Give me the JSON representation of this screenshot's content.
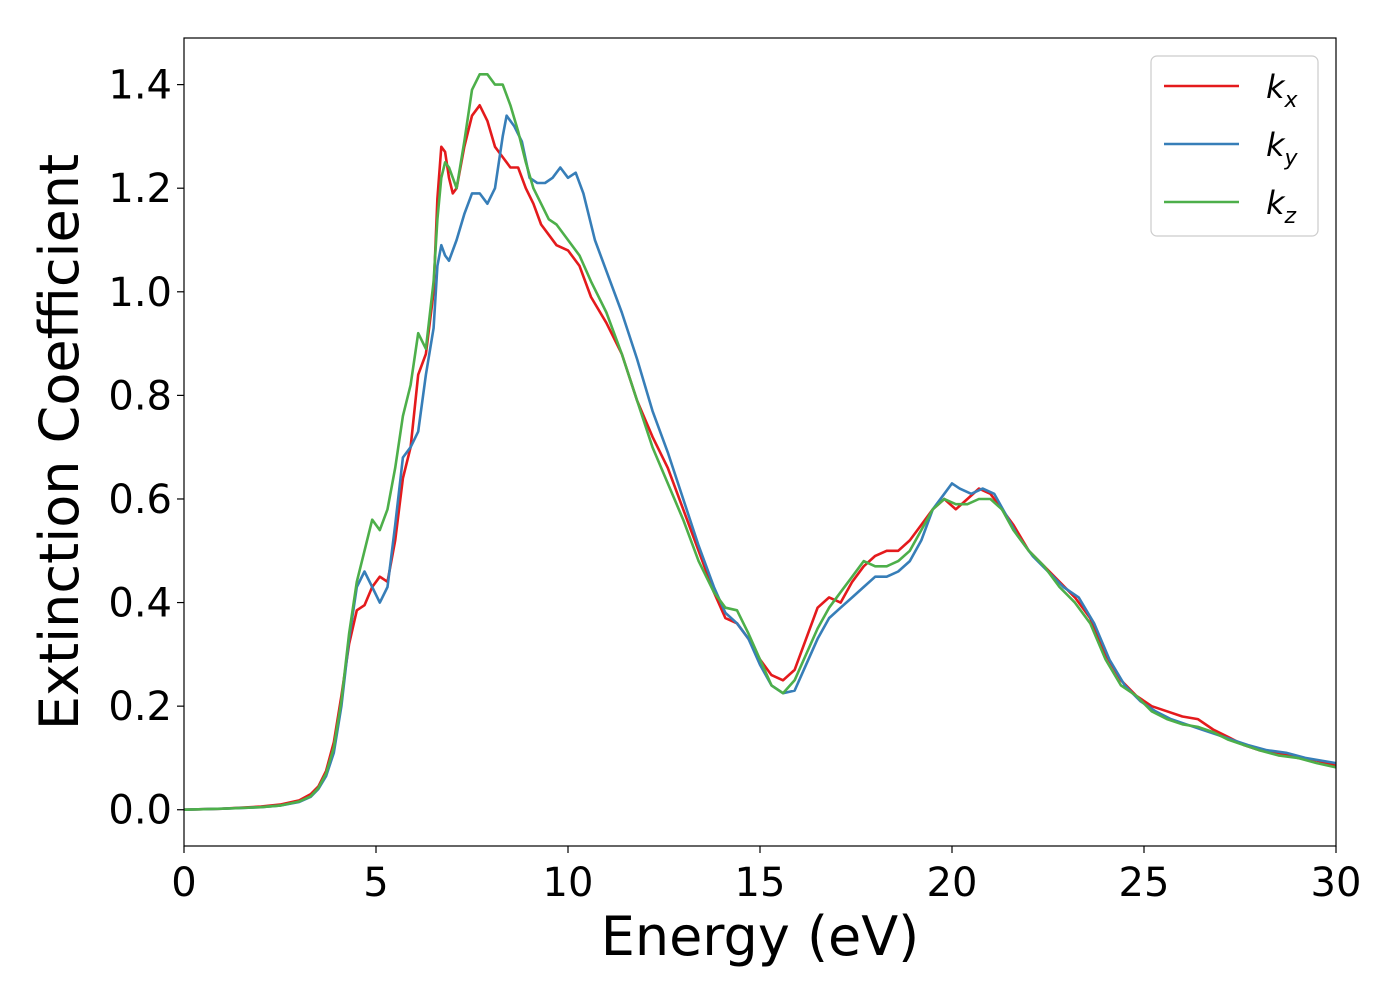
{
  "chart_data": {
    "type": "line",
    "title": "",
    "xlabel": "Energy (eV)",
    "ylabel": "Extinction Coefficient",
    "xlim": [
      0,
      30
    ],
    "ylim": [
      -0.07,
      1.49
    ],
    "xticks": [
      0,
      5,
      10,
      15,
      20,
      25,
      30
    ],
    "xtick_labels": [
      "0",
      "5",
      "10",
      "15",
      "20",
      "25",
      "30"
    ],
    "yticks": [
      0.0,
      0.2,
      0.4,
      0.6,
      0.8,
      1.0,
      1.2,
      1.4
    ],
    "ytick_labels": [
      "0.0",
      "0.2",
      "0.4",
      "0.6",
      "0.8",
      "1.0",
      "1.2",
      "1.4"
    ],
    "grid": false,
    "legend_position": "top-right",
    "series": [
      {
        "name": "kx",
        "legend_main": "k",
        "legend_sub": "x",
        "color": "#e41a1c",
        "points": [
          [
            0,
            0.0
          ],
          [
            1,
            0.002
          ],
          [
            2,
            0.006
          ],
          [
            2.5,
            0.01
          ],
          [
            3,
            0.018
          ],
          [
            3.3,
            0.03
          ],
          [
            3.5,
            0.045
          ],
          [
            3.7,
            0.075
          ],
          [
            3.9,
            0.13
          ],
          [
            4.1,
            0.22
          ],
          [
            4.3,
            0.32
          ],
          [
            4.5,
            0.385
          ],
          [
            4.7,
            0.395
          ],
          [
            4.9,
            0.43
          ],
          [
            5.1,
            0.45
          ],
          [
            5.3,
            0.44
          ],
          [
            5.5,
            0.52
          ],
          [
            5.7,
            0.64
          ],
          [
            5.9,
            0.7
          ],
          [
            6.1,
            0.84
          ],
          [
            6.3,
            0.88
          ],
          [
            6.5,
            1.0
          ],
          [
            6.6,
            1.18
          ],
          [
            6.7,
            1.28
          ],
          [
            6.8,
            1.27
          ],
          [
            6.9,
            1.22
          ],
          [
            7.0,
            1.19
          ],
          [
            7.1,
            1.2
          ],
          [
            7.3,
            1.28
          ],
          [
            7.5,
            1.34
          ],
          [
            7.7,
            1.36
          ],
          [
            7.9,
            1.33
          ],
          [
            8.1,
            1.28
          ],
          [
            8.3,
            1.26
          ],
          [
            8.5,
            1.24
          ],
          [
            8.7,
            1.24
          ],
          [
            8.9,
            1.2
          ],
          [
            9.1,
            1.17
          ],
          [
            9.3,
            1.13
          ],
          [
            9.5,
            1.11
          ],
          [
            9.7,
            1.09
          ],
          [
            10.0,
            1.08
          ],
          [
            10.3,
            1.05
          ],
          [
            10.6,
            0.99
          ],
          [
            11.0,
            0.94
          ],
          [
            11.4,
            0.88
          ],
          [
            11.8,
            0.79
          ],
          [
            12.2,
            0.72
          ],
          [
            12.6,
            0.66
          ],
          [
            13.0,
            0.58
          ],
          [
            13.4,
            0.5
          ],
          [
            13.8,
            0.42
          ],
          [
            14.1,
            0.37
          ],
          [
            14.4,
            0.36
          ],
          [
            14.7,
            0.33
          ],
          [
            15.0,
            0.29
          ],
          [
            15.3,
            0.26
          ],
          [
            15.6,
            0.25
          ],
          [
            15.9,
            0.27
          ],
          [
            16.2,
            0.33
          ],
          [
            16.5,
            0.39
          ],
          [
            16.8,
            0.41
          ],
          [
            17.1,
            0.4
          ],
          [
            17.4,
            0.44
          ],
          [
            17.7,
            0.47
          ],
          [
            18.0,
            0.49
          ],
          [
            18.3,
            0.5
          ],
          [
            18.6,
            0.5
          ],
          [
            18.9,
            0.52
          ],
          [
            19.2,
            0.55
          ],
          [
            19.5,
            0.58
          ],
          [
            19.8,
            0.6
          ],
          [
            20.1,
            0.58
          ],
          [
            20.4,
            0.6
          ],
          [
            20.7,
            0.62
          ],
          [
            21.0,
            0.61
          ],
          [
            21.3,
            0.58
          ],
          [
            21.6,
            0.55
          ],
          [
            22.0,
            0.5
          ],
          [
            22.4,
            0.47
          ],
          [
            22.8,
            0.44
          ],
          [
            23.2,
            0.41
          ],
          [
            23.6,
            0.37
          ],
          [
            24.0,
            0.3
          ],
          [
            24.4,
            0.25
          ],
          [
            24.8,
            0.22
          ],
          [
            25.2,
            0.2
          ],
          [
            25.6,
            0.19
          ],
          [
            26.0,
            0.18
          ],
          [
            26.4,
            0.175
          ],
          [
            26.8,
            0.155
          ],
          [
            27.2,
            0.14
          ],
          [
            27.6,
            0.125
          ],
          [
            28.0,
            0.115
          ],
          [
            28.5,
            0.11
          ],
          [
            29.0,
            0.1
          ],
          [
            29.5,
            0.095
          ],
          [
            30.0,
            0.085
          ]
        ]
      },
      {
        "name": "ky",
        "legend_main": "k",
        "legend_sub": "y",
        "color": "#377eb8",
        "points": [
          [
            0,
            0.0
          ],
          [
            1,
            0.002
          ],
          [
            2,
            0.005
          ],
          [
            2.5,
            0.008
          ],
          [
            3,
            0.015
          ],
          [
            3.3,
            0.025
          ],
          [
            3.5,
            0.04
          ],
          [
            3.7,
            0.065
          ],
          [
            3.9,
            0.11
          ],
          [
            4.1,
            0.2
          ],
          [
            4.3,
            0.33
          ],
          [
            4.5,
            0.43
          ],
          [
            4.7,
            0.46
          ],
          [
            4.9,
            0.43
          ],
          [
            5.1,
            0.4
          ],
          [
            5.3,
            0.43
          ],
          [
            5.5,
            0.55
          ],
          [
            5.7,
            0.68
          ],
          [
            5.9,
            0.7
          ],
          [
            6.1,
            0.73
          ],
          [
            6.3,
            0.84
          ],
          [
            6.5,
            0.93
          ],
          [
            6.6,
            1.05
          ],
          [
            6.7,
            1.09
          ],
          [
            6.8,
            1.07
          ],
          [
            6.9,
            1.06
          ],
          [
            7.1,
            1.1
          ],
          [
            7.3,
            1.15
          ],
          [
            7.5,
            1.19
          ],
          [
            7.7,
            1.19
          ],
          [
            7.9,
            1.17
          ],
          [
            8.1,
            1.2
          ],
          [
            8.3,
            1.3
          ],
          [
            8.4,
            1.34
          ],
          [
            8.6,
            1.32
          ],
          [
            8.8,
            1.29
          ],
          [
            9.0,
            1.22
          ],
          [
            9.2,
            1.21
          ],
          [
            9.4,
            1.21
          ],
          [
            9.6,
            1.22
          ],
          [
            9.8,
            1.24
          ],
          [
            10.0,
            1.22
          ],
          [
            10.2,
            1.23
          ],
          [
            10.4,
            1.19
          ],
          [
            10.7,
            1.1
          ],
          [
            11.0,
            1.04
          ],
          [
            11.4,
            0.96
          ],
          [
            11.8,
            0.87
          ],
          [
            12.2,
            0.77
          ],
          [
            12.6,
            0.69
          ],
          [
            13.0,
            0.6
          ],
          [
            13.4,
            0.51
          ],
          [
            13.8,
            0.43
          ],
          [
            14.1,
            0.38
          ],
          [
            14.4,
            0.36
          ],
          [
            14.7,
            0.33
          ],
          [
            15.0,
            0.28
          ],
          [
            15.3,
            0.24
          ],
          [
            15.6,
            0.225
          ],
          [
            15.9,
            0.23
          ],
          [
            16.2,
            0.28
          ],
          [
            16.5,
            0.33
          ],
          [
            16.8,
            0.37
          ],
          [
            17.1,
            0.39
          ],
          [
            17.4,
            0.41
          ],
          [
            17.7,
            0.43
          ],
          [
            18.0,
            0.45
          ],
          [
            18.3,
            0.45
          ],
          [
            18.6,
            0.46
          ],
          [
            18.9,
            0.48
          ],
          [
            19.2,
            0.52
          ],
          [
            19.5,
            0.58
          ],
          [
            19.8,
            0.61
          ],
          [
            20.0,
            0.63
          ],
          [
            20.2,
            0.62
          ],
          [
            20.5,
            0.61
          ],
          [
            20.8,
            0.62
          ],
          [
            21.1,
            0.61
          ],
          [
            21.4,
            0.57
          ],
          [
            21.7,
            0.53
          ],
          [
            22.1,
            0.49
          ],
          [
            22.5,
            0.46
          ],
          [
            22.9,
            0.43
          ],
          [
            23.3,
            0.41
          ],
          [
            23.7,
            0.36
          ],
          [
            24.1,
            0.29
          ],
          [
            24.5,
            0.24
          ],
          [
            24.9,
            0.21
          ],
          [
            25.3,
            0.19
          ],
          [
            25.7,
            0.175
          ],
          [
            26.1,
            0.165
          ],
          [
            26.5,
            0.155
          ],
          [
            26.9,
            0.145
          ],
          [
            27.3,
            0.135
          ],
          [
            27.7,
            0.125
          ],
          [
            28.2,
            0.115
          ],
          [
            28.7,
            0.11
          ],
          [
            29.2,
            0.1
          ],
          [
            29.6,
            0.095
          ],
          [
            30.0,
            0.09
          ]
        ]
      },
      {
        "name": "kz",
        "legend_main": "k",
        "legend_sub": "z",
        "color": "#4daf4a",
        "points": [
          [
            0,
            0.0
          ],
          [
            1,
            0.002
          ],
          [
            2,
            0.005
          ],
          [
            2.5,
            0.008
          ],
          [
            3,
            0.016
          ],
          [
            3.3,
            0.026
          ],
          [
            3.5,
            0.042
          ],
          [
            3.7,
            0.07
          ],
          [
            3.9,
            0.12
          ],
          [
            4.1,
            0.21
          ],
          [
            4.3,
            0.34
          ],
          [
            4.5,
            0.44
          ],
          [
            4.7,
            0.5
          ],
          [
            4.9,
            0.56
          ],
          [
            5.1,
            0.54
          ],
          [
            5.3,
            0.58
          ],
          [
            5.5,
            0.66
          ],
          [
            5.7,
            0.76
          ],
          [
            5.9,
            0.82
          ],
          [
            6.1,
            0.92
          ],
          [
            6.3,
            0.89
          ],
          [
            6.5,
            1.02
          ],
          [
            6.6,
            1.14
          ],
          [
            6.7,
            1.22
          ],
          [
            6.8,
            1.25
          ],
          [
            6.9,
            1.24
          ],
          [
            7.0,
            1.22
          ],
          [
            7.1,
            1.2
          ],
          [
            7.3,
            1.29
          ],
          [
            7.5,
            1.39
          ],
          [
            7.7,
            1.42
          ],
          [
            7.9,
            1.42
          ],
          [
            8.1,
            1.4
          ],
          [
            8.3,
            1.4
          ],
          [
            8.5,
            1.36
          ],
          [
            8.7,
            1.31
          ],
          [
            8.9,
            1.25
          ],
          [
            9.1,
            1.2
          ],
          [
            9.3,
            1.17
          ],
          [
            9.5,
            1.14
          ],
          [
            9.7,
            1.13
          ],
          [
            10.0,
            1.1
          ],
          [
            10.3,
            1.07
          ],
          [
            10.6,
            1.02
          ],
          [
            11.0,
            0.96
          ],
          [
            11.4,
            0.88
          ],
          [
            11.8,
            0.79
          ],
          [
            12.2,
            0.7
          ],
          [
            12.6,
            0.63
          ],
          [
            13.0,
            0.56
          ],
          [
            13.4,
            0.48
          ],
          [
            13.8,
            0.42
          ],
          [
            14.1,
            0.39
          ],
          [
            14.4,
            0.385
          ],
          [
            14.7,
            0.34
          ],
          [
            15.0,
            0.29
          ],
          [
            15.3,
            0.24
          ],
          [
            15.6,
            0.225
          ],
          [
            15.9,
            0.25
          ],
          [
            16.2,
            0.3
          ],
          [
            16.5,
            0.35
          ],
          [
            16.8,
            0.39
          ],
          [
            17.1,
            0.42
          ],
          [
            17.4,
            0.45
          ],
          [
            17.7,
            0.48
          ],
          [
            18.0,
            0.47
          ],
          [
            18.3,
            0.47
          ],
          [
            18.6,
            0.48
          ],
          [
            18.9,
            0.5
          ],
          [
            19.2,
            0.54
          ],
          [
            19.5,
            0.58
          ],
          [
            19.8,
            0.6
          ],
          [
            20.1,
            0.59
          ],
          [
            20.4,
            0.59
          ],
          [
            20.7,
            0.6
          ],
          [
            21.0,
            0.6
          ],
          [
            21.3,
            0.58
          ],
          [
            21.6,
            0.54
          ],
          [
            22.0,
            0.5
          ],
          [
            22.4,
            0.47
          ],
          [
            22.8,
            0.43
          ],
          [
            23.2,
            0.4
          ],
          [
            23.6,
            0.36
          ],
          [
            24.0,
            0.29
          ],
          [
            24.4,
            0.24
          ],
          [
            24.8,
            0.22
          ],
          [
            25.2,
            0.19
          ],
          [
            25.6,
            0.175
          ],
          [
            26.0,
            0.165
          ],
          [
            26.4,
            0.16
          ],
          [
            26.8,
            0.15
          ],
          [
            27.2,
            0.135
          ],
          [
            27.6,
            0.125
          ],
          [
            28.0,
            0.115
          ],
          [
            28.5,
            0.105
          ],
          [
            29.0,
            0.1
          ],
          [
            29.5,
            0.09
          ],
          [
            30.0,
            0.082
          ]
        ]
      }
    ]
  }
}
